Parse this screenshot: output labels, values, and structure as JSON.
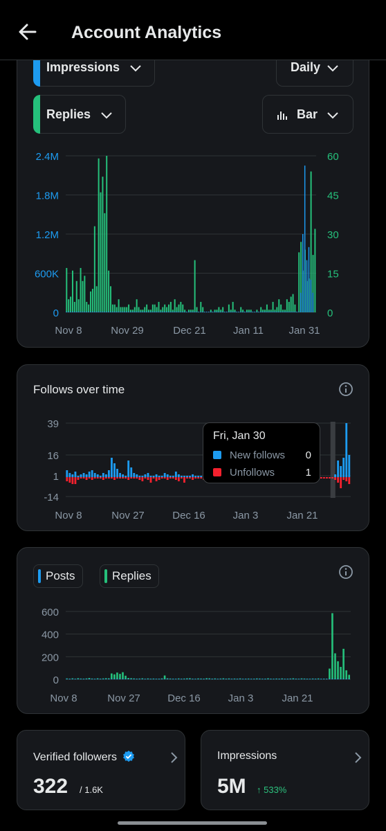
{
  "header": {
    "title": "Account Analytics",
    "back_icon": "arrow-left-icon"
  },
  "impressions_card": {
    "metric1": {
      "label": "Impressions",
      "color": "#1d9bf0"
    },
    "metric2": {
      "label": "Replies",
      "color": "#25c07b"
    },
    "interval": {
      "label": "Daily"
    },
    "chart_type_btn": {
      "label": "Bar",
      "icon": "bar-chart-icon"
    }
  },
  "follows_card": {
    "title": "Follows over time",
    "tooltip": {
      "date": "Fri, Jan 30",
      "new_follows_label": "New follows",
      "new_follows_value": "0",
      "unfollows_label": "Unfollows",
      "unfollows_value": "1"
    }
  },
  "posts_card": {
    "legend_posts": "Posts",
    "legend_replies": "Replies"
  },
  "verified_card": {
    "label": "Verified followers",
    "value": "322",
    "total": "/ 1.6K"
  },
  "impr_card": {
    "label": "Impressions",
    "value": "5M",
    "delta": "↑ 533%"
  },
  "chart_data": [
    {
      "type": "bar",
      "title": "",
      "x_tick_labels": [
        "Nov 8",
        "Nov 29",
        "Dec 21",
        "Jan 11",
        "Jan 31"
      ],
      "y_left_ticks": [
        "2.4M",
        "1.8M",
        "1.2M",
        "600K",
        "0"
      ],
      "y_right_ticks": [
        "60",
        "45",
        "30",
        "15",
        "0"
      ],
      "ylim_left": [
        0,
        2400000
      ],
      "ylim_right": [
        0,
        60
      ],
      "series": [
        {
          "name": "Impressions",
          "axis": "left",
          "color": "#1d9bf0",
          "values": [
            2000,
            2000,
            2000,
            2000,
            2000,
            2000,
            2000,
            2000,
            2000,
            2000,
            2000,
            2000,
            2000,
            2000,
            2000,
            2000,
            2000,
            2000,
            2000,
            2000,
            2000,
            2000,
            2000,
            2000,
            2000,
            2000,
            2000,
            2000,
            2000,
            2000,
            2000,
            2000,
            2000,
            2000,
            2000,
            2000,
            2000,
            2000,
            2000,
            2000,
            2000,
            2000,
            2000,
            2000,
            2000,
            2000,
            2000,
            2000,
            2000,
            2000,
            2000,
            2000,
            2000,
            2000,
            2000,
            2000,
            2000,
            2000,
            2000,
            2000,
            2000,
            2000,
            2000,
            2000,
            2000,
            2000,
            2000,
            2000,
            2000,
            2000,
            2000,
            2000,
            2000,
            2000,
            2000,
            2000,
            2000,
            2000,
            2000,
            2000,
            2000,
            2000,
            2000,
            2000,
            2000,
            2000,
            2000,
            2000,
            2000,
            2000,
            2000,
            2000,
            2000,
            2000,
            2000,
            2000,
            2000,
            2000,
            2000,
            2000,
            2000,
            2000,
            2000,
            2000,
            2000,
            2000,
            2000,
            2000,
            2000,
            2000,
            2000,
            2000,
            2000,
            2000,
            2000,
            2000,
            2000,
            300000,
            1200000,
            2250000,
            800000,
            1000000,
            500000,
            300000
          ]
        },
        {
          "name": "Replies",
          "axis": "right",
          "color": "#25c07b",
          "values": [
            17,
            5,
            6,
            16,
            4,
            12,
            5,
            17,
            12,
            14,
            4,
            3,
            8,
            9,
            33,
            10,
            59,
            46,
            52,
            38,
            60,
            16,
            10,
            3,
            3,
            2,
            5,
            2,
            2,
            2,
            2,
            3,
            1,
            1,
            2,
            5,
            2,
            1,
            1,
            2,
            3,
            1,
            1,
            3,
            3,
            2,
            4,
            1,
            2,
            3,
            2,
            3,
            4,
            1,
            5,
            2,
            3,
            4,
            3,
            1,
            0,
            1,
            1,
            1,
            20,
            2,
            0,
            4,
            2,
            0,
            0,
            0,
            1,
            0,
            1,
            1,
            2,
            1,
            2,
            0,
            0,
            3,
            1,
            4,
            1,
            0,
            0,
            2,
            1,
            0,
            1,
            1,
            1,
            0,
            0,
            1,
            0,
            2,
            1,
            1,
            3,
            1,
            1,
            4,
            1,
            2,
            5,
            3,
            1,
            1,
            5,
            4,
            6,
            7,
            3,
            0,
            23,
            27,
            16,
            24,
            12,
            13,
            54,
            22,
            32
          ]
        }
      ]
    },
    {
      "type": "bar",
      "title": "Follows over time",
      "x_tick_labels": [
        "Nov 8",
        "Nov 27",
        "Dec 16",
        "Jan 3",
        "Jan 21"
      ],
      "y_ticks": [
        "39",
        "16",
        "1",
        "-14"
      ],
      "ylim": [
        -14,
        39
      ],
      "series": [
        {
          "name": "New follows",
          "color": "#1d9bf0",
          "values": [
            5,
            3,
            2,
            4,
            1,
            2,
            3,
            2,
            4,
            5,
            3,
            2,
            1,
            3,
            2,
            5,
            14,
            10,
            6,
            3,
            2,
            1,
            12,
            7,
            3,
            2,
            1,
            1,
            2,
            3,
            1,
            1,
            2,
            1,
            1,
            3,
            2,
            1,
            1,
            4,
            2,
            1,
            1,
            1,
            1,
            2,
            1,
            1,
            1,
            3,
            1,
            2,
            4,
            1,
            1,
            2,
            1,
            3,
            1,
            1,
            2,
            1,
            1,
            1,
            1,
            1,
            1,
            2,
            1,
            1,
            1,
            1,
            0,
            1,
            1,
            1,
            1,
            1,
            2,
            1,
            1,
            1,
            1,
            3,
            1,
            1,
            1,
            2,
            1,
            1,
            1,
            0,
            0,
            0,
            0,
            0,
            2,
            12,
            8,
            14,
            39,
            16
          ]
        },
        {
          "name": "Unfollows",
          "color": "#f4212e",
          "values": [
            -3,
            -4,
            -5,
            -5,
            -2,
            -1,
            -1,
            -2,
            -1,
            -2,
            -1,
            -1,
            -1,
            -2,
            -1,
            -1,
            -1,
            -2,
            -1,
            -1,
            -1,
            -1,
            -2,
            -1,
            -1,
            -1,
            -2,
            -3,
            -1,
            -2,
            -4,
            -1,
            -3,
            -2,
            -1,
            -1,
            -2,
            -1,
            -1,
            -2,
            -3,
            -1,
            -4,
            -1,
            -1,
            -2,
            -1,
            -1,
            -1,
            -2,
            -3,
            -1,
            -1,
            -1,
            -1,
            -2,
            -1,
            -1,
            -1,
            -1,
            -1,
            -1,
            -2,
            -1,
            -1,
            -2,
            -1,
            -1,
            -1,
            -1,
            -1,
            -1,
            -1,
            -2,
            -1,
            -1,
            -1,
            -1,
            -1,
            -1,
            -1,
            -1,
            -2,
            -1,
            -1,
            -1,
            -1,
            -1,
            -2,
            -1,
            -1,
            -1,
            -1,
            -1,
            -1,
            -1,
            -2,
            -4,
            -8,
            -2,
            -3,
            -5
          ]
        }
      ]
    },
    {
      "type": "bar",
      "title": "",
      "x_tick_labels": [
        "Nov 8",
        "Nov 27",
        "Dec 16",
        "Jan 3",
        "Jan 21"
      ],
      "y_ticks": [
        "600",
        "400",
        "200",
        "0"
      ],
      "ylim": [
        0,
        600
      ],
      "series": [
        {
          "name": "Posts",
          "color": "#1d9bf0",
          "values": [
            2,
            1,
            1,
            2,
            1,
            1,
            1,
            2,
            1,
            1,
            2,
            1,
            1,
            1,
            1,
            1,
            2,
            1,
            1,
            1,
            1,
            1,
            1,
            1,
            1,
            1,
            1,
            1,
            1,
            1,
            1,
            1,
            1,
            1,
            1,
            1,
            1,
            1,
            1,
            1,
            1,
            1,
            1,
            1,
            1,
            1,
            1,
            1,
            1,
            1,
            1,
            1,
            1,
            1,
            1,
            1,
            1,
            1,
            1,
            1,
            1,
            1,
            1,
            1,
            1,
            1,
            1,
            1,
            1,
            1,
            1,
            1,
            1,
            1,
            1,
            1,
            1,
            1,
            1,
            1,
            1,
            1,
            1,
            1,
            1,
            1,
            1,
            1,
            1,
            1,
            1,
            1,
            1,
            1,
            1,
            1,
            1,
            1,
            1,
            1,
            1,
            1
          ]
        },
        {
          "name": "Replies",
          "color": "#25c07b",
          "values": [
            8,
            6,
            9,
            5,
            10,
            7,
            6,
            8,
            12,
            7,
            5,
            9,
            6,
            8,
            10,
            9,
            52,
            44,
            60,
            48,
            63,
            32,
            12,
            10,
            8,
            6,
            7,
            9,
            5,
            8,
            6,
            7,
            5,
            6,
            8,
            34,
            9,
            7,
            6,
            5,
            8,
            6,
            7,
            9,
            10,
            6,
            5,
            8,
            7,
            6,
            10,
            9,
            6,
            8,
            5,
            7,
            9,
            6,
            8,
            5,
            7,
            6,
            8,
            5,
            6,
            7,
            5,
            6,
            8,
            7,
            5,
            6,
            9,
            6,
            5,
            7,
            6,
            8,
            5,
            6,
            7,
            9,
            6,
            5,
            8,
            7,
            6,
            5,
            7,
            6,
            8,
            5,
            6,
            5,
            95,
            585,
            230,
            160,
            110,
            270,
            80,
            40
          ]
        }
      ]
    }
  ]
}
